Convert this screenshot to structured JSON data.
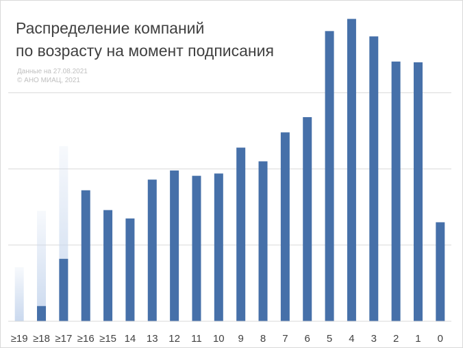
{
  "chart_data": {
    "type": "bar",
    "title_lines": [
      "Распределение компаний",
      "по возрасту на момент подписания"
    ],
    "notes": [
      "Данные на 27.08.2021",
      "© АНО МИАЦ, 2021"
    ],
    "xlabel": "",
    "ylabel": "",
    "ylim": [
      0,
      4
    ],
    "grid": true,
    "legend": "none",
    "categories": [
      "≥19",
      "≥18",
      "≥17",
      "≥16",
      "≥15",
      "14",
      "13",
      "12",
      "11",
      "10",
      "9",
      "8",
      "7",
      "6",
      "5",
      "4",
      "3",
      "2",
      "1",
      "0"
    ],
    "values": [
      0,
      0.2,
      0.82,
      1.72,
      1.46,
      1.35,
      1.86,
      1.98,
      1.91,
      1.94,
      2.28,
      2.1,
      2.48,
      2.68,
      3.81,
      3.97,
      3.74,
      3.41,
      3.4,
      1.3
    ],
    "ghost_values": [
      0.71,
      1.45,
      2.3,
      0.86,
      0,
      0,
      0,
      0,
      0,
      0,
      0,
      0,
      0,
      0,
      0,
      0,
      0,
      0,
      0,
      0
    ],
    "colors": {
      "bar": "#4670a9",
      "ghost": "#c9d8ee",
      "grid": "#d9d9d9",
      "tick": "#404040"
    }
  }
}
